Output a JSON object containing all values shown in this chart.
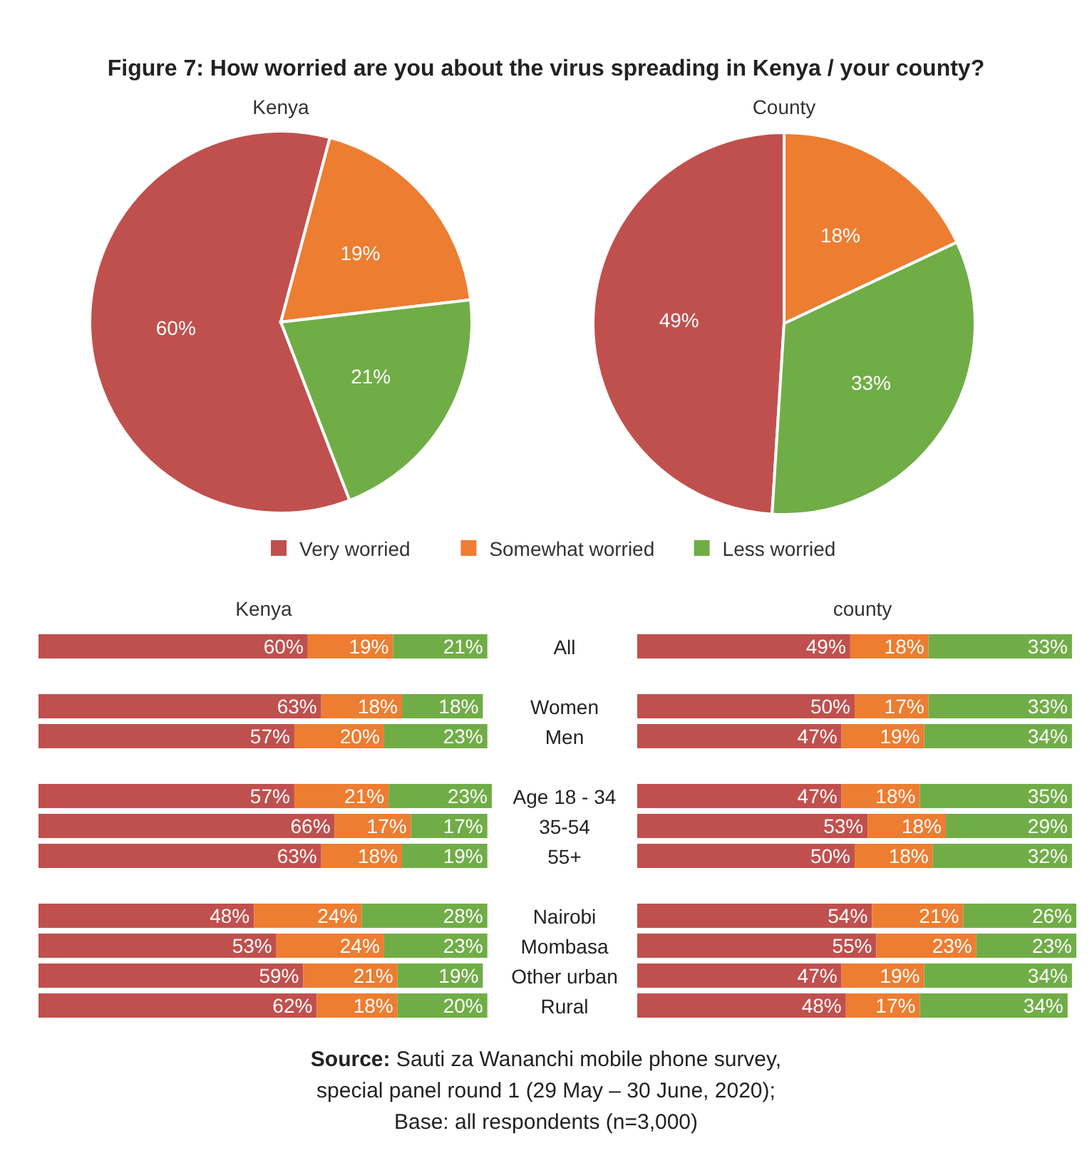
{
  "chart_data": [
    {
      "type": "pie",
      "title": "Figure 7: How worried are you about the virus spreading in Kenya / your county?",
      "subtitle": "Kenya",
      "categories": [
        "Very worried",
        "Somewhat worried",
        "Less worried"
      ],
      "values": [
        60,
        19,
        21
      ],
      "value_labels": [
        "60%",
        "19%",
        "21%"
      ],
      "colors": [
        "#c0504d",
        "#ed7d31",
        "#70ad47"
      ],
      "legend": "bottom"
    },
    {
      "type": "pie",
      "title": "County",
      "categories": [
        null,
        null,
        null
      ],
      "values": [
        49,
        18,
        33
      ],
      "value_labels": [
        "49%",
        "18%",
        "33%"
      ],
      "colors": [
        "#c0504d",
        "#ed7d31",
        "#70ad47"
      ]
    },
    {
      "type": "bar",
      "orientation": "horizontal",
      "stacked": true,
      "title": "Kenya",
      "xlim": [
        0,
        101
      ],
      "tick_labels": "y",
      "categories": [
        "All",
        null,
        "Women",
        "Men",
        null,
        "Age 18 - 34",
        "35-54",
        "55+",
        null,
        "Nairobi",
        "Mombasa",
        "Other urban",
        "Rural"
      ],
      "series": [
        {
          "color": "#c0504d",
          "values": [
            60,
            null,
            63,
            57,
            null,
            57,
            66,
            63,
            null,
            48,
            53,
            59,
            62
          ],
          "value_labels": [
            "60%",
            null,
            "63%",
            "57%",
            null,
            "57%",
            "66%",
            "63%",
            null,
            "48%",
            "53%",
            "59%",
            "62%"
          ]
        },
        {
          "color": "#ed7d31",
          "values": [
            19,
            null,
            18,
            20,
            null,
            21,
            17,
            18,
            null,
            24,
            24,
            21,
            18
          ],
          "value_labels": [
            "19%",
            null,
            "18%",
            "20%",
            null,
            "21%",
            "17%",
            "18%",
            null,
            "24%",
            "24%",
            "21%",
            "18%"
          ]
        },
        {
          "color": "#70ad47",
          "values": [
            21,
            null,
            18,
            23,
            null,
            23,
            17,
            19,
            null,
            28,
            23,
            19,
            20
          ],
          "value_labels": [
            "21%",
            null,
            "18%",
            "23%",
            null,
            "23%",
            "17%",
            "19%",
            null,
            "28%",
            "23%",
            "19%",
            "20%"
          ]
        }
      ]
    },
    {
      "type": "bar",
      "orientation": "horizontal",
      "stacked": true,
      "title": "county",
      "xlim": [
        0,
        101
      ],
      "tick_labels": false,
      "categories": [
        null,
        null,
        null,
        null,
        null,
        null,
        null,
        null,
        null,
        null,
        null,
        null,
        null
      ],
      "series": [
        {
          "color": "#c0504d",
          "values": [
            49,
            null,
            50,
            47,
            null,
            47,
            53,
            50,
            null,
            54,
            55,
            47,
            48
          ],
          "value_labels": [
            "49%",
            null,
            "50%",
            "47%",
            null,
            "47%",
            "53%",
            "50%",
            null,
            "54%",
            "55%",
            "47%",
            "48%"
          ]
        },
        {
          "color": "#ed7d31",
          "values": [
            18,
            null,
            17,
            19,
            null,
            18,
            18,
            18,
            null,
            21,
            23,
            19,
            17
          ],
          "value_labels": [
            "18%",
            null,
            "17%",
            "19%",
            null,
            "18%",
            "18%",
            "18%",
            null,
            "21%",
            "23%",
            "19%",
            "17%"
          ]
        },
        {
          "color": "#70ad47",
          "values": [
            33,
            null,
            33,
            34,
            null,
            35,
            29,
            32,
            null,
            26,
            23,
            34,
            34
          ],
          "value_labels": [
            "33%",
            null,
            "33%",
            "34%",
            null,
            "35%",
            "29%",
            "32%",
            null,
            "26%",
            "23%",
            "34%",
            "34%"
          ]
        }
      ],
      "annotations": [
        "Source: Sauti za Wananchi mobile phone survey,",
        "special panel round 1 (29 May – 30 June, 2020);",
        "Base: all respondents (n=3,000)"
      ]
    }
  ]
}
